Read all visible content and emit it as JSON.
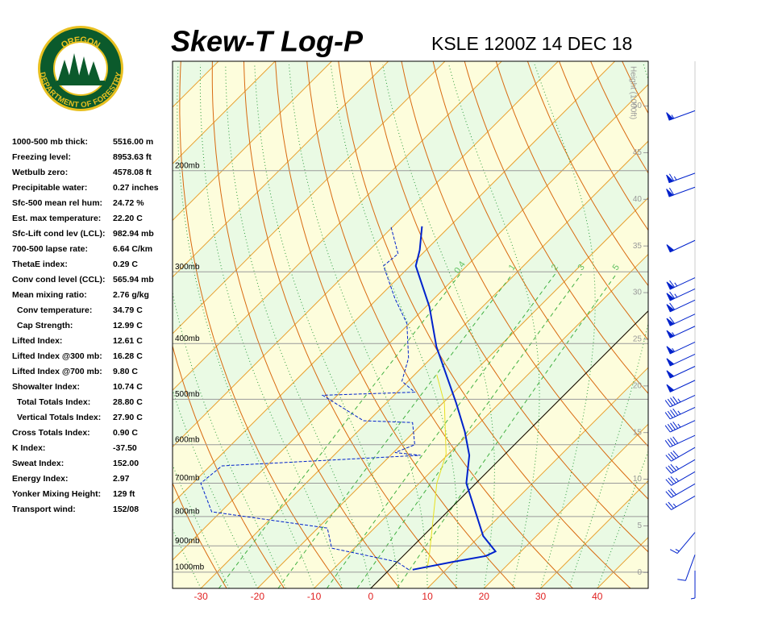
{
  "header": {
    "title": "Skew-T Log-P",
    "station": "KSLE 1200Z 14 DEC 18"
  },
  "logo": {
    "top": "OREGON",
    "bottom": "DEPARTMENT OF FORESTRY"
  },
  "stats": [
    {
      "label": "1000-500 mb thick:",
      "value": "5516.00 m"
    },
    {
      "label": "Freezing level:",
      "value": "8953.63 ft"
    },
    {
      "label": "Wetbulb zero:",
      "value": "4578.08 ft"
    },
    {
      "label": "Precipitable water:",
      "value": "0.27 inches"
    },
    {
      "label": "Sfc-500 mean rel hum:",
      "value": "24.72 %"
    },
    {
      "label": "Est. max temperature:",
      "value": "22.20 C"
    },
    {
      "label": "Sfc-Lift cond lev (LCL):",
      "value": "982.94 mb"
    },
    {
      "label": "700-500 lapse rate:",
      "value": "6.64 C/km"
    },
    {
      "label": "ThetaE index:",
      "value": "0.29 C"
    },
    {
      "label": "Conv cond level (CCL):",
      "value": "565.94 mb"
    },
    {
      "label": "Mean mixing ratio:",
      "value": "2.76 g/kg"
    },
    {
      "label": "Conv temperature:",
      "value": "34.79 C"
    },
    {
      "label": "Cap Strength:",
      "value": "12.99 C"
    },
    {
      "label": "Lifted Index:",
      "value": "12.61 C"
    },
    {
      "label": "Lifted Index @300 mb:",
      "value": "16.28 C"
    },
    {
      "label": "Lifted Index @700 mb:",
      "value": "9.80 C"
    },
    {
      "label": "Showalter Index:",
      "value": "10.74 C"
    },
    {
      "label": "Total Totals Index:",
      "value": "28.80 C"
    },
    {
      "label": "Vertical Totals Index:",
      "value": "27.90 C"
    },
    {
      "label": "Cross Totals Index:",
      "value": "0.90 C"
    },
    {
      "label": "K Index:",
      "value": "-37.50"
    },
    {
      "label": "Sweat Index:",
      "value": "152.00"
    },
    {
      "label": "Energy Index:",
      "value": "2.97"
    },
    {
      "label": "Yonker Mixing Height:",
      "value": "129 ft"
    },
    {
      "label": "Transport wind:",
      "value": "152/08"
    }
  ],
  "chart_data": {
    "type": "skew-t",
    "xlim": [
      -35,
      49
    ],
    "xticks": [
      -30,
      -20,
      -10,
      0,
      10,
      20,
      30,
      40
    ],
    "plim": [
      1067,
      129
    ],
    "isobars": [
      {
        "value": 1000,
        "label": "1000mb"
      },
      {
        "value": 900,
        "label": "900mb"
      },
      {
        "value": 800,
        "label": "800mb"
      },
      {
        "value": 700,
        "label": "700mb"
      },
      {
        "value": 600,
        "label": "600mb"
      },
      {
        "value": 500,
        "label": "500mb"
      },
      {
        "value": 400,
        "label": "400mb"
      },
      {
        "value": 300,
        "label": "300mb"
      },
      {
        "value": 200,
        "label": "200mb"
      }
    ],
    "height_label": "Height (1000ft)",
    "hlim": [
      -1.7,
      54.8
    ],
    "hticks": [
      0,
      5,
      10,
      15,
      20,
      25,
      30,
      35,
      40,
      45,
      50
    ],
    "mixing_ratios": [
      0.4,
      1,
      2,
      3,
      5
    ],
    "temperature": {
      "color": "#0022cc",
      "p": [
        990,
        959,
        937,
        920,
        865,
        700,
        626,
        569,
        508,
        405,
        345,
        293,
        275,
        250
      ],
      "t": [
        4.1,
        9.9,
        14.6,
        15.5,
        10.6,
        -1.7,
        -6.1,
        -11.1,
        -17.6,
        -31.1,
        -39.4,
        -49,
        -51.1,
        -54.9
      ]
    },
    "dewpoint": {
      "color": "#0022cc",
      "p": [
        990,
        959,
        908,
        838,
        785,
        700,
        653,
        626,
        619,
        600,
        549,
        545,
        492,
        486,
        465,
        424,
        369,
        334,
        293,
        279,
        250
      ],
      "t": [
        3.4,
        -0.1,
        -14,
        -18.3,
        -41.6,
        -48.6,
        -47.9,
        -14.7,
        -19.7,
        -17.6,
        -21.9,
        -30.9,
        -42.6,
        -26.9,
        -31.1,
        -34,
        -40.4,
        -46.9,
        -54.7,
        -54.3,
        -60.4
      ]
    },
    "parcel": {
      "color": "#e8e020",
      "p": [
        984,
        937,
        700,
        623,
        508,
        453
      ],
      "t": [
        6.4,
        4.6,
        -6.9,
        -10.4,
        -19.7,
        -26.1
      ]
    },
    "winds": {
      "color": "#0022cc",
      "h": [
        49.5,
        42.8,
        41.3,
        35.6,
        31.6,
        30.4,
        29.2,
        27.7,
        26.4,
        24.7,
        23.4,
        22.1,
        20.6,
        19.0,
        17.7,
        16.3,
        14.7,
        13.4,
        12.1,
        10.8,
        9.5,
        8.2,
        4.3,
        1.9,
        0.2
      ],
      "dir": [
        250,
        250,
        250,
        245,
        245,
        245,
        245,
        245,
        245,
        245,
        245,
        245,
        245,
        245,
        245,
        245,
        245,
        240,
        240,
        240,
        240,
        240,
        220,
        200,
        180
      ],
      "spd": [
        55,
        65,
        60,
        50,
        65,
        65,
        60,
        60,
        55,
        55,
        50,
        50,
        50,
        45,
        45,
        45,
        40,
        40,
        35,
        35,
        30,
        25,
        15,
        10,
        5
      ]
    }
  }
}
